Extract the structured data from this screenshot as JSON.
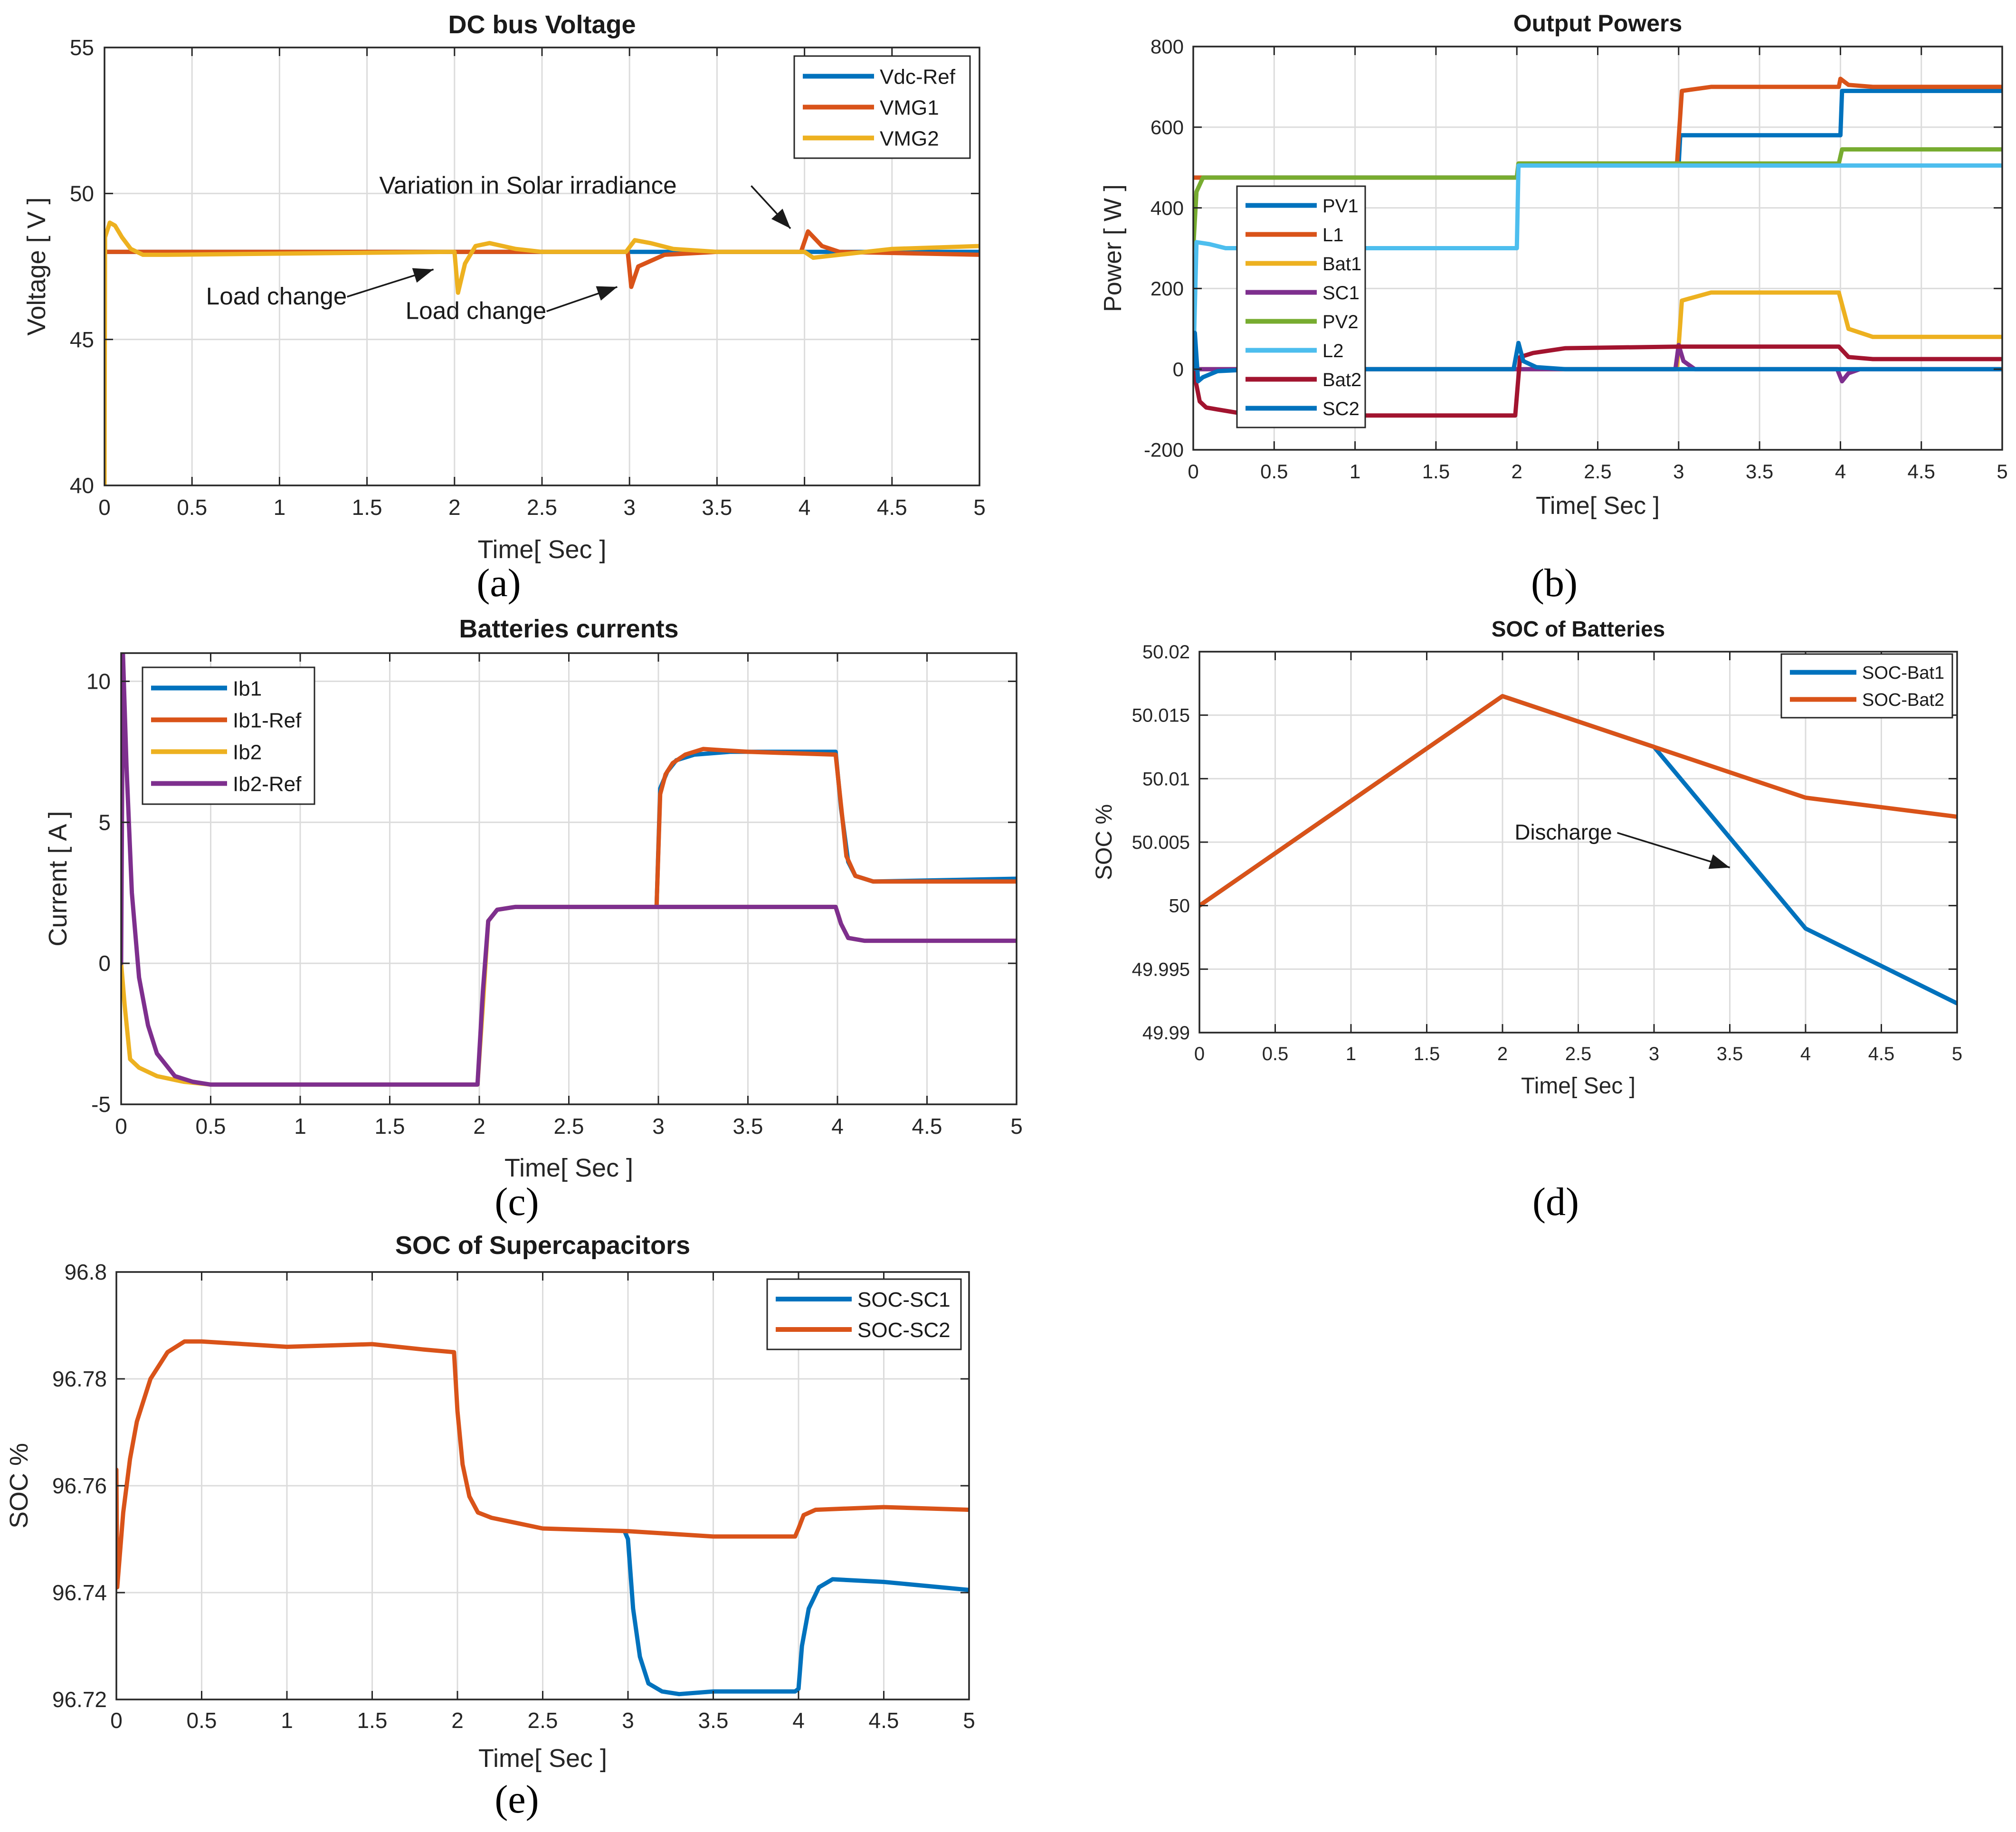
{
  "colors": {
    "blue": "#0072BD",
    "orange": "#D95319",
    "yellow": "#EDB120",
    "purple": "#7E2F8E",
    "green": "#77AC30",
    "cyan": "#4DBEEE",
    "maroon": "#A2142F"
  },
  "chart_data": [
    {
      "id": "a",
      "caption": "(a)",
      "type": "line",
      "title": "DC bus Voltage",
      "xlabel": "Time[ Sec ]",
      "ylabel": "Voltage [ V ]",
      "xlim": [
        0,
        5
      ],
      "ylim": [
        40,
        55
      ],
      "grid": true,
      "xticks": [
        0,
        0.5,
        1,
        1.5,
        2,
        2.5,
        3,
        3.5,
        4,
        4.5,
        5
      ],
      "xtick_labels": [
        "0",
        "0.5",
        "1",
        "1.5",
        "2",
        "2.5",
        "3",
        "3.5",
        "4",
        "4.5",
        "5"
      ],
      "yticks": [
        40,
        45,
        50,
        55
      ],
      "ytick_labels": [
        "40",
        "45",
        "50",
        "55"
      ],
      "legend_position": "top-right",
      "series": [
        {
          "name": "Vdc-Ref",
          "color": "#0072BD",
          "x": [
            0,
            5
          ],
          "y": [
            48,
            48
          ]
        },
        {
          "name": "VMG1",
          "color": "#D95319",
          "x": [
            0,
            1.99,
            2.0,
            2.05,
            2.15,
            2.9,
            2.99,
            3.01,
            3.05,
            3.2,
            3.5,
            3.98,
            4.02,
            4.1,
            4.2,
            5
          ],
          "y": [
            48,
            48,
            48,
            48,
            48,
            48,
            48,
            46.8,
            47.5,
            47.9,
            48,
            48,
            48.7,
            48.2,
            48,
            47.9
          ]
        },
        {
          "name": "VMG2",
          "color": "#EDB120",
          "x": [
            0,
            0.003,
            0.03,
            0.06,
            0.1,
            0.15,
            0.22,
            0.35,
            1.98,
            2.0,
            2.02,
            2.06,
            2.12,
            2.2,
            2.35,
            2.5,
            2.98,
            3.03,
            3.12,
            3.25,
            3.5,
            4.0,
            4.05,
            4.2,
            4.5,
            5
          ],
          "y": [
            40,
            48.5,
            49.0,
            48.9,
            48.5,
            48.1,
            47.9,
            47.9,
            48,
            48,
            46.6,
            47.6,
            48.2,
            48.3,
            48.1,
            48,
            48,
            48.4,
            48.3,
            48.1,
            48,
            48,
            47.8,
            47.9,
            48.1,
            48.2
          ]
        }
      ],
      "annotations": [
        {
          "text": "Variation in Solar irradiance",
          "x": 1.57,
          "y": 50.0,
          "arrow_to": [
            3.92,
            48.8
          ]
        },
        {
          "text": "Load change",
          "x": 0.58,
          "y": 46.2,
          "arrow_to": [
            1.88,
            47.4
          ]
        },
        {
          "text": "Load change",
          "x": 1.72,
          "y": 45.7,
          "arrow_to": [
            2.93,
            46.8
          ]
        }
      ]
    },
    {
      "id": "b",
      "caption": "(b)",
      "type": "line",
      "title": "Output Powers",
      "xlabel": "Time[ Sec ]",
      "ylabel": "Power [ W ]",
      "xlim": [
        0,
        5
      ],
      "ylim": [
        -200,
        800
      ],
      "grid": true,
      "xticks": [
        0,
        0.5,
        1,
        1.5,
        2,
        2.5,
        3,
        3.5,
        4,
        4.5,
        5
      ],
      "xtick_labels": [
        "0",
        "0.5",
        "1",
        "1.5",
        "2",
        "2.5",
        "3",
        "3.5",
        "4",
        "4.5",
        "5"
      ],
      "yticks": [
        -200,
        0,
        200,
        400,
        600,
        800
      ],
      "ytick_labels": [
        "-200",
        "0",
        "200",
        "400",
        "600",
        "800"
      ],
      "legend_position": "left",
      "series": [
        {
          "name": "PV1",
          "color": "#0072BD",
          "x": [
            0,
            2,
            2.01,
            3,
            3.01,
            4,
            4.01,
            5
          ],
          "y": [
            475,
            475,
            505,
            505,
            580,
            580,
            690,
            690
          ]
        },
        {
          "name": "L1",
          "color": "#D95319",
          "x": [
            0,
            2,
            2.01,
            2.99,
            3.02,
            3.2,
            3.99,
            4.0,
            4.05,
            4.2,
            5
          ],
          "y": [
            475,
            475,
            510,
            510,
            690,
            700,
            700,
            720,
            705,
            700,
            700
          ]
        },
        {
          "name": "Bat1",
          "color": "#EDB120",
          "x": [
            0,
            2.99,
            3.02,
            3.2,
            3.99,
            4.05,
            4.2,
            5
          ],
          "y": [
            0,
            0,
            170,
            190,
            190,
            100,
            80,
            80
          ]
        },
        {
          "name": "SC1",
          "color": "#7E2F8E",
          "x": [
            0,
            2.98,
            3.0,
            3.03,
            3.1,
            3.98,
            4.01,
            4.05,
            4.12,
            5
          ],
          "y": [
            0,
            0,
            60,
            20,
            0,
            0,
            -30,
            -10,
            0,
            0
          ]
        },
        {
          "name": "PV2",
          "color": "#77AC30",
          "x": [
            0,
            0.02,
            0.06,
            2,
            2.01,
            3.99,
            4.01,
            5
          ],
          "y": [
            300,
            440,
            475,
            475,
            510,
            510,
            545,
            545
          ]
        },
        {
          "name": "L2",
          "color": "#4DBEEE",
          "x": [
            0,
            0.02,
            0.1,
            0.2,
            2,
            2.01,
            5
          ],
          "y": [
            0,
            315,
            310,
            300,
            300,
            505,
            505
          ]
        },
        {
          "name": "Bat2",
          "color": "#A2142F",
          "x": [
            0,
            0.04,
            0.08,
            0.15,
            0.3,
            0.6,
            1.99,
            2.02,
            2.1,
            2.3,
            3.0,
            3.99,
            4.05,
            4.2,
            5
          ],
          "y": [
            0,
            -80,
            -95,
            -100,
            -110,
            -115,
            -115,
            30,
            40,
            52,
            56,
            56,
            30,
            25,
            25
          ]
        },
        {
          "name": "SC2",
          "color": "#0072BD",
          "x": [
            0,
            0.01,
            0.03,
            0.06,
            0.15,
            0.4,
            1.98,
            2.01,
            2.04,
            2.12,
            2.3,
            5
          ],
          "y": [
            0,
            90,
            -30,
            -20,
            -5,
            0,
            0,
            65,
            20,
            5,
            0,
            0
          ]
        }
      ]
    },
    {
      "id": "c",
      "caption": "(c)",
      "type": "line",
      "title": "Batteries currents",
      "xlabel": "Time[ Sec ]",
      "ylabel": "Current [ A ]",
      "xlim": [
        0,
        5
      ],
      "ylim": [
        -5,
        11
      ],
      "grid": true,
      "xticks": [
        0,
        0.5,
        1,
        1.5,
        2,
        2.5,
        3,
        3.5,
        4,
        4.5,
        5
      ],
      "xtick_labels": [
        "0",
        "0.5",
        "1",
        "1.5",
        "2",
        "2.5",
        "3",
        "3.5",
        "4",
        "4.5",
        "5"
      ],
      "yticks": [
        -5,
        0,
        5,
        10
      ],
      "ytick_labels": [
        "-5",
        "0",
        "5",
        "10"
      ],
      "legend_position": "top-left",
      "series": [
        {
          "name": "Ib1",
          "color": "#0072BD",
          "x": [
            2.99,
            3.01,
            3.05,
            3.1,
            3.2,
            3.4,
            3.99,
            4.02,
            4.06,
            4.1,
            4.2,
            5
          ],
          "y": [
            2.0,
            6.2,
            6.8,
            7.2,
            7.4,
            7.5,
            7.5,
            5.5,
            3.6,
            3.1,
            2.9,
            3.0
          ]
        },
        {
          "name": "Ib1-Ref",
          "color": "#D95319",
          "x": [
            2.99,
            3.01,
            3.04,
            3.08,
            3.15,
            3.25,
            3.5,
            3.99,
            4.02,
            4.05,
            4.1,
            4.2,
            5
          ],
          "y": [
            2.0,
            6.0,
            6.7,
            7.1,
            7.4,
            7.6,
            7.5,
            7.4,
            5.6,
            3.8,
            3.1,
            2.9,
            2.9
          ]
        },
        {
          "name": "Ib2",
          "color": "#EDB120",
          "x": [
            0,
            0.02,
            0.05,
            0.1,
            0.2,
            0.35,
            0.5,
            1.99,
            2.02,
            2.05,
            2.1,
            2.2,
            3.99,
            4.02,
            4.06,
            4.15,
            5
          ],
          "y": [
            0,
            -1.5,
            -3.4,
            -3.7,
            -4.0,
            -4.2,
            -4.3,
            -4.3,
            -1.5,
            1.5,
            1.9,
            2.0,
            2.0,
            1.4,
            0.9,
            0.8,
            0.8
          ]
        },
        {
          "name": "Ib2-Ref",
          "color": "#7E2F8E",
          "x": [
            0,
            0.01,
            0.03,
            0.06,
            0.1,
            0.15,
            0.2,
            0.3,
            0.4,
            0.5,
            1.99,
            2.02,
            2.05,
            2.1,
            2.2,
            3.0,
            3.99,
            4.02,
            4.06,
            4.15,
            5
          ],
          "y": [
            0,
            11,
            7.0,
            2.5,
            -0.5,
            -2.2,
            -3.2,
            -4.0,
            -4.2,
            -4.3,
            -4.3,
            -1.0,
            1.5,
            1.9,
            2.0,
            2.0,
            2.0,
            1.4,
            0.9,
            0.8,
            0.8
          ]
        }
      ]
    },
    {
      "id": "d",
      "caption": "(d)",
      "type": "line",
      "title": "SOC of Batteries",
      "xlabel": "Time[ Sec ]",
      "ylabel": "SOC %",
      "xlim": [
        0,
        5
      ],
      "ylim": [
        49.99,
        50.02
      ],
      "grid": true,
      "xticks": [
        0,
        0.5,
        1,
        1.5,
        2,
        2.5,
        3,
        3.5,
        4,
        4.5,
        5
      ],
      "xtick_labels": [
        "0",
        "0.5",
        "1",
        "1.5",
        "2",
        "2.5",
        "3",
        "3.5",
        "4",
        "4.5",
        "5"
      ],
      "yticks": [
        49.99,
        49.995,
        50,
        50.005,
        50.01,
        50.015,
        50.02
      ],
      "ytick_labels": [
        "49.99",
        "49.995",
        "50",
        "50.005",
        "50.01",
        "50.015",
        "50.02"
      ],
      "legend_position": "top-right",
      "series": [
        {
          "name": "SOC-Bat1",
          "color": "#0072BD",
          "x": [
            0,
            2,
            3,
            4,
            5
          ],
          "y": [
            50.0,
            50.0165,
            50.0125,
            49.9982,
            49.9923
          ]
        },
        {
          "name": "SOC-Bat2",
          "color": "#D95319",
          "x": [
            0,
            2,
            3,
            4,
            5
          ],
          "y": [
            50.0,
            50.0165,
            50.0125,
            50.0085,
            50.007
          ]
        }
      ],
      "annotations": [
        {
          "text": "Discharge",
          "x": 2.08,
          "y": 50.0052,
          "arrow_to": [
            3.5,
            50.003
          ]
        }
      ]
    },
    {
      "id": "e",
      "caption": "(e)",
      "type": "line",
      "title": "SOC of Supercapacitors",
      "xlabel": "Time[ Sec ]",
      "ylabel": "SOC %",
      "xlim": [
        0,
        5
      ],
      "ylim": [
        96.72,
        96.8
      ],
      "grid": true,
      "xticks": [
        0,
        0.5,
        1,
        1.5,
        2,
        2.5,
        3,
        3.5,
        4,
        4.5,
        5
      ],
      "xtick_labels": [
        "0",
        "0.5",
        "1",
        "1.5",
        "2",
        "2.5",
        "3",
        "3.5",
        "4",
        "4.5",
        "5"
      ],
      "yticks": [
        96.72,
        96.74,
        96.76,
        96.78,
        96.8
      ],
      "ytick_labels": [
        "96.72",
        "96.74",
        "96.76",
        "96.78",
        "96.8"
      ],
      "legend_position": "top-right",
      "series": [
        {
          "name": "SOC-SC1",
          "color": "#0072BD",
          "x": [
            2.98,
            3.0,
            3.03,
            3.07,
            3.12,
            3.2,
            3.3,
            3.5,
            3.98,
            4.0,
            4.02,
            4.06,
            4.12,
            4.2,
            4.5,
            5
          ],
          "y": [
            96.7515,
            96.75,
            96.737,
            96.728,
            96.723,
            96.7215,
            96.721,
            96.7215,
            96.7215,
            96.722,
            96.73,
            96.737,
            96.741,
            96.7425,
            96.742,
            96.7405
          ]
        },
        {
          "name": "SOC-SC2",
          "color": "#D95319",
          "x": [
            0,
            0.005,
            0.015,
            0.04,
            0.08,
            0.12,
            0.2,
            0.3,
            0.4,
            0.5,
            1.0,
            1.5,
            1.8,
            1.98,
            2.0,
            2.03,
            2.07,
            2.12,
            2.2,
            2.35,
            2.5,
            3.0,
            3.5,
            3.98,
            4.0,
            4.03,
            4.1,
            4.5,
            5
          ],
          "y": [
            96.763,
            96.741,
            96.745,
            96.755,
            96.765,
            96.772,
            96.78,
            96.785,
            96.787,
            96.787,
            96.786,
            96.7865,
            96.7855,
            96.785,
            96.774,
            96.764,
            96.758,
            96.755,
            96.754,
            96.753,
            96.752,
            96.7515,
            96.7505,
            96.7505,
            96.752,
            96.7545,
            96.7555,
            96.756,
            96.7555
          ]
        }
      ]
    }
  ]
}
